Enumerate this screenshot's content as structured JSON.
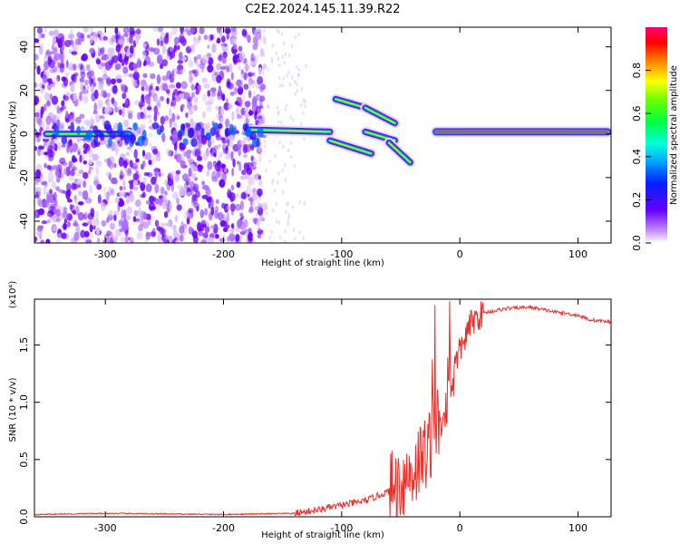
{
  "title": "C2E2.2024.145.11.39.R22",
  "colors": {
    "snr_line": "#e8302a",
    "background": "#ffffff"
  },
  "chart_data": [
    {
      "type": "heatmap",
      "xlabel": "Height of straight line (km)",
      "ylabel": "Frequency (Hz)",
      "xlim": [
        -360,
        128
      ],
      "ylim": [
        -50,
        49
      ],
      "xticks": [
        -300,
        -200,
        -100,
        0,
        100
      ],
      "yticks": [
        -40,
        -20,
        0,
        20,
        40
      ],
      "colorbar": {
        "label": "Normalized spectral amplitude",
        "range": [
          0,
          1
        ],
        "ticks": [
          "0.0",
          "0.2",
          "0.4",
          "0.6",
          "0.8"
        ],
        "colormap": "rainbow"
      },
      "features": [
        {
          "segment": [
            -180,
            -110
          ],
          "freq": [
            2,
            1
          ]
        },
        {
          "segment": [
            -105,
            -80
          ],
          "freq": [
            16,
            12
          ]
        },
        {
          "segment": [
            -80,
            -55
          ],
          "freq": [
            12,
            5
          ]
        },
        {
          "segment": [
            -110,
            -75
          ],
          "freq": [
            -3,
            -9
          ]
        },
        {
          "segment": [
            -80,
            -55
          ],
          "freq": [
            1,
            -3
          ]
        },
        {
          "segment": [
            -60,
            -42
          ],
          "freq": [
            -4,
            -13
          ]
        },
        {
          "segment": [
            -20,
            125
          ],
          "freq": [
            1,
            1
          ]
        },
        {
          "segment": [
            -350,
            -280
          ],
          "freq": [
            0,
            0
          ]
        }
      ]
    },
    {
      "type": "line",
      "xlabel": "Height of straight line (km)",
      "ylabel": "SNR (10 * v/v)",
      "yscale_label": "(x10⁴)",
      "xlim": [
        -360,
        128
      ],
      "ylim": [
        0,
        1.9
      ],
      "xticks": [
        -300,
        -200,
        -100,
        0,
        100
      ],
      "yticks": [
        "0.0",
        "0.5",
        "1.0",
        "1.5"
      ],
      "series": [
        {
          "x": [
            -360,
            -300,
            -200,
            -140,
            -120,
            -100,
            -80,
            -60,
            -50,
            -40,
            -30,
            -25,
            -20,
            -15,
            -10,
            0,
            10,
            20,
            40,
            60,
            80,
            100,
            110,
            128
          ],
          "y": [
            0.02,
            0.03,
            0.02,
            0.03,
            0.06,
            0.1,
            0.14,
            0.22,
            0.3,
            0.4,
            0.55,
            0.65,
            0.8,
            0.95,
            1.15,
            1.45,
            1.7,
            1.78,
            1.82,
            1.83,
            1.79,
            1.76,
            1.72,
            1.7
          ]
        }
      ]
    }
  ]
}
